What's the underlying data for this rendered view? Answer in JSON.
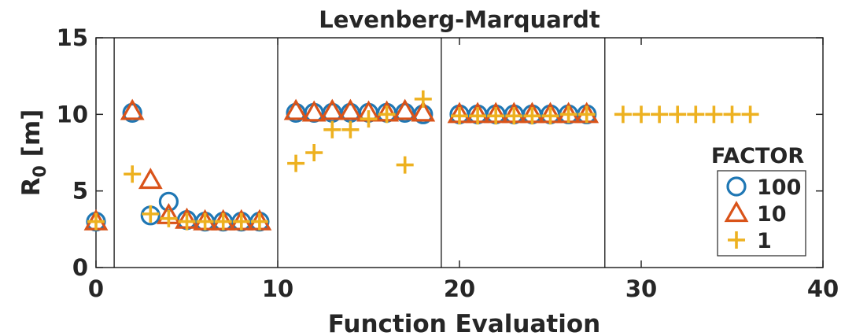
{
  "chart_data": {
    "type": "scatter",
    "title": "Levenberg-Marquardt",
    "xlabel": "Function Evaluation",
    "ylabel": "R",
    "ylabel_subscript": "0",
    "ylabel_unit": "[m]",
    "xlim": [
      0,
      40
    ],
    "ylim": [
      0,
      15
    ],
    "xticks": [
      0,
      10,
      20,
      30,
      40
    ],
    "yticks": [
      0,
      5,
      10,
      15
    ],
    "x_tick_labels": [
      "0",
      "10",
      "20",
      "30",
      "40"
    ],
    "y_tick_labels": [
      "0",
      "5",
      "10",
      "15"
    ],
    "grid": false,
    "vertical_lines": [
      1,
      10,
      19,
      28
    ],
    "legend": {
      "title": "FACTOR",
      "position": "right"
    },
    "series": [
      {
        "name": "100",
        "marker": "circle",
        "color": "#1f77b4",
        "points": [
          [
            0,
            3.0
          ],
          [
            2,
            10.1
          ],
          [
            3,
            3.4
          ],
          [
            4,
            4.3
          ],
          [
            5,
            3.1
          ],
          [
            6,
            3.0
          ],
          [
            7,
            3.0
          ],
          [
            8,
            3.0
          ],
          [
            9,
            3.0
          ],
          [
            11,
            10.1
          ],
          [
            12,
            10.1
          ],
          [
            13,
            10.1
          ],
          [
            14,
            10.1
          ],
          [
            15,
            10.1
          ],
          [
            16,
            10.1
          ],
          [
            17,
            10.1
          ],
          [
            18,
            10.0
          ],
          [
            20,
            10.0
          ],
          [
            21,
            10.0
          ],
          [
            22,
            10.0
          ],
          [
            23,
            10.0
          ],
          [
            24,
            10.0
          ],
          [
            25,
            10.0
          ],
          [
            26,
            10.0
          ],
          [
            27,
            10.0
          ]
        ]
      },
      {
        "name": "10",
        "marker": "triangle",
        "color": "#d95319",
        "points": [
          [
            0,
            3.0
          ],
          [
            2,
            10.2
          ],
          [
            3,
            5.7
          ],
          [
            4,
            3.4
          ],
          [
            5,
            3.1
          ],
          [
            6,
            3.0
          ],
          [
            7,
            3.0
          ],
          [
            8,
            3.0
          ],
          [
            9,
            3.0
          ],
          [
            11,
            10.2
          ],
          [
            12,
            10.1
          ],
          [
            13,
            10.2
          ],
          [
            14,
            10.2
          ],
          [
            15,
            10.1
          ],
          [
            16,
            10.1
          ],
          [
            17,
            10.2
          ],
          [
            18,
            10.1
          ],
          [
            20,
            10.0
          ],
          [
            21,
            10.0
          ],
          [
            22,
            10.0
          ],
          [
            23,
            10.0
          ],
          [
            24,
            10.0
          ],
          [
            25,
            10.0
          ],
          [
            26,
            10.0
          ],
          [
            27,
            10.0
          ]
        ]
      },
      {
        "name": "1",
        "marker": "plus",
        "color": "#edb120",
        "points": [
          [
            0,
            3.0
          ],
          [
            2,
            6.1
          ],
          [
            3,
            3.5
          ],
          [
            4,
            3.2
          ],
          [
            5,
            3.0
          ],
          [
            6,
            3.0
          ],
          [
            7,
            3.0
          ],
          [
            8,
            3.0
          ],
          [
            9,
            3.0
          ],
          [
            11,
            6.8
          ],
          [
            12,
            7.5
          ],
          [
            13,
            9.0
          ],
          [
            14,
            9.0
          ],
          [
            15,
            9.7
          ],
          [
            16,
            10.0
          ],
          [
            17,
            6.7
          ],
          [
            18,
            11.0
          ],
          [
            20,
            9.9
          ],
          [
            21,
            9.9
          ],
          [
            22,
            9.9
          ],
          [
            23,
            9.9
          ],
          [
            24,
            9.9
          ],
          [
            25,
            9.9
          ],
          [
            26,
            10.0
          ],
          [
            27,
            10.0
          ],
          [
            29,
            10.0
          ],
          [
            30,
            10.0
          ],
          [
            31,
            10.0
          ],
          [
            32,
            10.0
          ],
          [
            33,
            10.0
          ],
          [
            34,
            10.0
          ],
          [
            35,
            10.0
          ],
          [
            36,
            10.0
          ]
        ]
      }
    ]
  }
}
